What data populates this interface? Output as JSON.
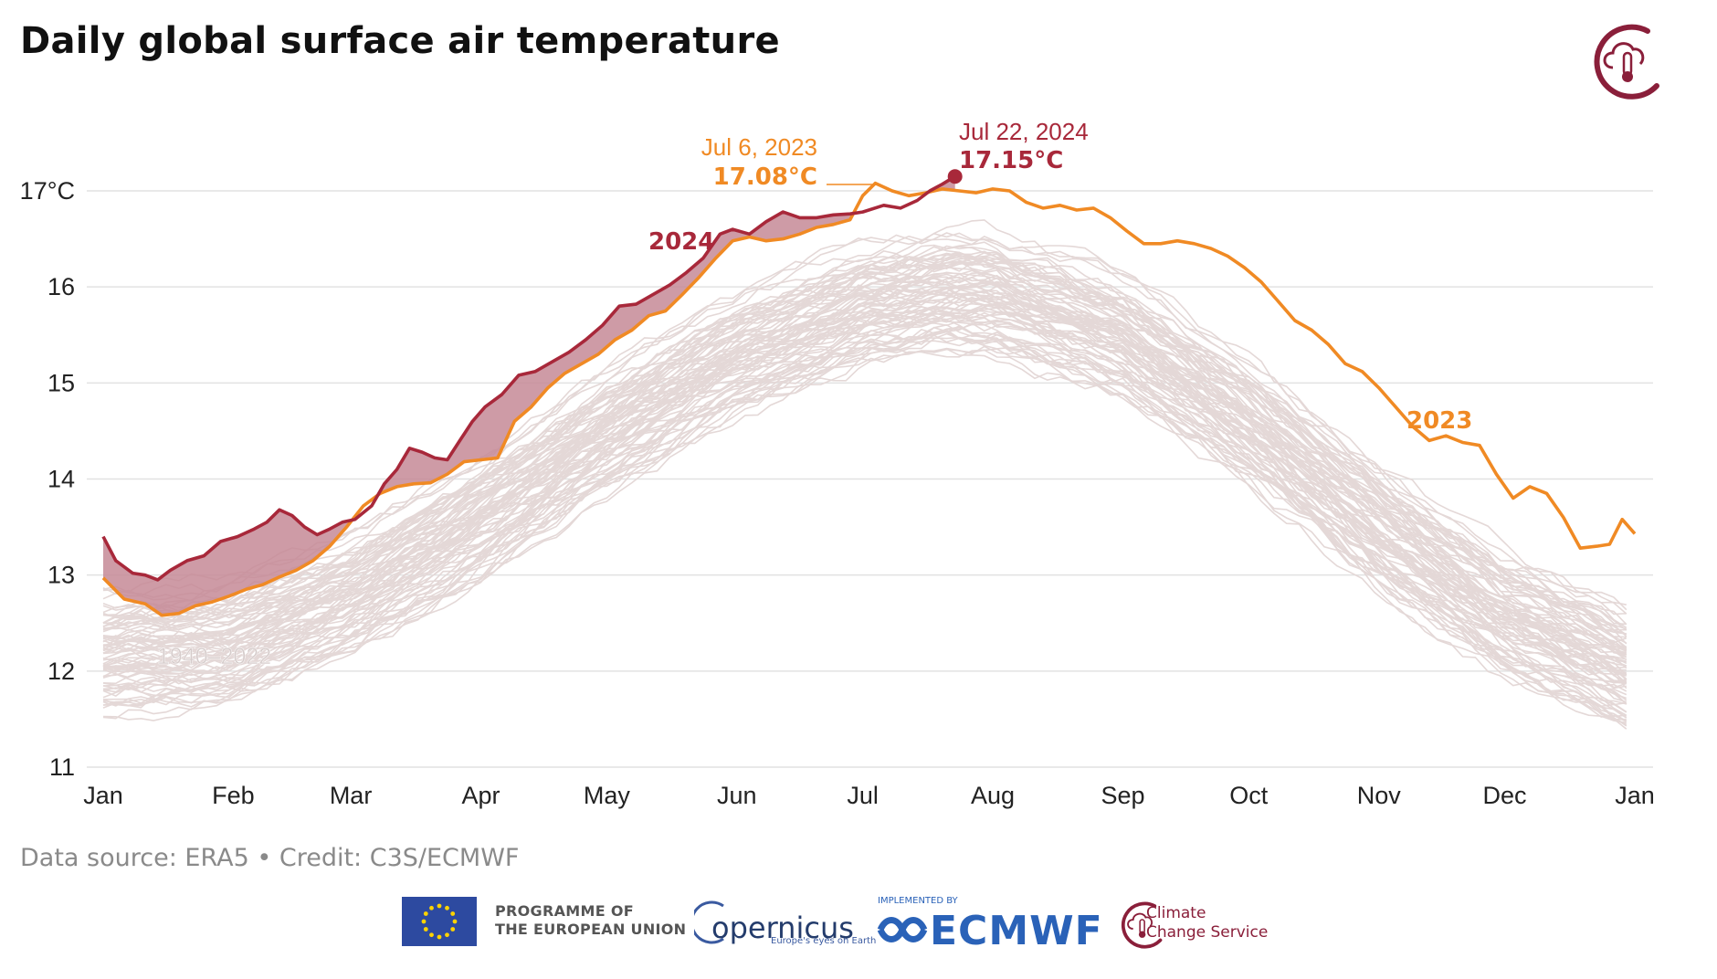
{
  "title": "Daily global surface air temperature",
  "credit": "Data source: ERA5 • Credit: C3S/ECMWF",
  "colors": {
    "y2024": "#a8283a",
    "y2023": "#f08a24",
    "historical": "#e4d8d7",
    "fill": "#c68a96",
    "grid": "#e2e2e2",
    "c3s": "#8a1f3a",
    "eu": "#2d4aa0",
    "ecmwf": "#2a62b8"
  },
  "logos": {
    "eu_line1": "PROGRAMME OF",
    "eu_line2": "THE EUROPEAN UNION",
    "copernicus": "opernicus",
    "copernicus_sub": "Europe's eyes on Earth",
    "ecmwf_small": "IMPLEMENTED BY",
    "ecmwf": "ECMWF",
    "c3s_line1": "Climate",
    "c3s_line2": "Change Service",
    "icons": [
      "c3s-thermometer-cloud-icon",
      "eu-flag-icon",
      "ecmwf-icon"
    ]
  },
  "chart_data": {
    "type": "line",
    "x_axis": {
      "ticks": [
        "Jan",
        "Feb",
        "Mar",
        "Apr",
        "May",
        "Jun",
        "Jul",
        "Aug",
        "Sep",
        "Oct",
        "Nov",
        "Dec",
        "Jan"
      ],
      "tick_days": [
        0,
        31,
        59,
        90,
        120,
        151,
        181,
        212,
        243,
        273,
        304,
        334,
        365
      ],
      "range_days": [
        0,
        365
      ]
    },
    "y_axis": {
      "ticks": [
        "11",
        "12",
        "13",
        "14",
        "15",
        "16",
        "17°C"
      ],
      "tick_values": [
        11,
        12,
        13,
        14,
        15,
        16,
        17
      ],
      "range": [
        11,
        17.6
      ]
    },
    "grid": true,
    "series": [
      {
        "name": "2024",
        "label": "2024",
        "points": [
          [
            0,
            13.4
          ],
          [
            3,
            13.15
          ],
          [
            7,
            13.02
          ],
          [
            10,
            13.0
          ],
          [
            13,
            12.95
          ],
          [
            16,
            13.05
          ],
          [
            20,
            13.15
          ],
          [
            24,
            13.2
          ],
          [
            28,
            13.35
          ],
          [
            32,
            13.4
          ],
          [
            36,
            13.48
          ],
          [
            39,
            13.55
          ],
          [
            42,
            13.68
          ],
          [
            45,
            13.62
          ],
          [
            48,
            13.5
          ],
          [
            51,
            13.42
          ],
          [
            54,
            13.48
          ],
          [
            57,
            13.55
          ],
          [
            60,
            13.58
          ],
          [
            64,
            13.72
          ],
          [
            67,
            13.95
          ],
          [
            70,
            14.1
          ],
          [
            73,
            14.32
          ],
          [
            76,
            14.28
          ],
          [
            79,
            14.22
          ],
          [
            82,
            14.2
          ],
          [
            85,
            14.4
          ],
          [
            88,
            14.6
          ],
          [
            91,
            14.75
          ],
          [
            95,
            14.88
          ],
          [
            99,
            15.08
          ],
          [
            103,
            15.12
          ],
          [
            107,
            15.22
          ],
          [
            111,
            15.32
          ],
          [
            115,
            15.45
          ],
          [
            119,
            15.6
          ],
          [
            123,
            15.8
          ],
          [
            127,
            15.82
          ],
          [
            131,
            15.92
          ],
          [
            135,
            16.02
          ],
          [
            139,
            16.15
          ],
          [
            143,
            16.3
          ],
          [
            147,
            16.55
          ],
          [
            150,
            16.6
          ],
          [
            154,
            16.55
          ],
          [
            158,
            16.68
          ],
          [
            162,
            16.78
          ],
          [
            166,
            16.72
          ],
          [
            170,
            16.72
          ],
          [
            174,
            16.75
          ],
          [
            178,
            16.76
          ],
          [
            181,
            16.78
          ],
          [
            186,
            16.85
          ],
          [
            190,
            16.82
          ],
          [
            194,
            16.9
          ],
          [
            197,
            17.0
          ],
          [
            200,
            17.07
          ],
          [
            203,
            17.15
          ]
        ]
      },
      {
        "name": "2023",
        "label": "2023",
        "points": [
          [
            0,
            12.97
          ],
          [
            5,
            12.75
          ],
          [
            10,
            12.7
          ],
          [
            14,
            12.58
          ],
          [
            18,
            12.6
          ],
          [
            22,
            12.68
          ],
          [
            26,
            12.72
          ],
          [
            30,
            12.78
          ],
          [
            34,
            12.85
          ],
          [
            38,
            12.9
          ],
          [
            42,
            12.98
          ],
          [
            46,
            13.05
          ],
          [
            50,
            13.15
          ],
          [
            54,
            13.3
          ],
          [
            58,
            13.5
          ],
          [
            62,
            13.72
          ],
          [
            66,
            13.85
          ],
          [
            70,
            13.92
          ],
          [
            74,
            13.95
          ],
          [
            78,
            13.96
          ],
          [
            82,
            14.05
          ],
          [
            86,
            14.18
          ],
          [
            90,
            14.2
          ],
          [
            94,
            14.22
          ],
          [
            98,
            14.6
          ],
          [
            102,
            14.75
          ],
          [
            106,
            14.95
          ],
          [
            110,
            15.1
          ],
          [
            114,
            15.2
          ],
          [
            118,
            15.3
          ],
          [
            122,
            15.45
          ],
          [
            126,
            15.55
          ],
          [
            130,
            15.7
          ],
          [
            134,
            15.75
          ],
          [
            138,
            15.92
          ],
          [
            142,
            16.1
          ],
          [
            146,
            16.3
          ],
          [
            150,
            16.48
          ],
          [
            154,
            16.52
          ],
          [
            158,
            16.48
          ],
          [
            162,
            16.5
          ],
          [
            166,
            16.55
          ],
          [
            170,
            16.62
          ],
          [
            174,
            16.65
          ],
          [
            178,
            16.7
          ],
          [
            181,
            16.95
          ],
          [
            184,
            17.08
          ],
          [
            188,
            17.0
          ],
          [
            192,
            16.95
          ],
          [
            196,
            16.98
          ],
          [
            200,
            17.02
          ],
          [
            204,
            17.0
          ],
          [
            208,
            16.98
          ],
          [
            212,
            17.02
          ],
          [
            216,
            17.0
          ],
          [
            220,
            16.88
          ],
          [
            224,
            16.82
          ],
          [
            228,
            16.85
          ],
          [
            232,
            16.8
          ],
          [
            236,
            16.82
          ],
          [
            240,
            16.72
          ],
          [
            244,
            16.58
          ],
          [
            248,
            16.45
          ],
          [
            252,
            16.45
          ],
          [
            256,
            16.48
          ],
          [
            260,
            16.45
          ],
          [
            264,
            16.4
          ],
          [
            268,
            16.32
          ],
          [
            272,
            16.2
          ],
          [
            276,
            16.05
          ],
          [
            280,
            15.85
          ],
          [
            284,
            15.65
          ],
          [
            288,
            15.55
          ],
          [
            292,
            15.4
          ],
          [
            296,
            15.2
          ],
          [
            300,
            15.12
          ],
          [
            304,
            14.95
          ],
          [
            308,
            14.75
          ],
          [
            312,
            14.55
          ],
          [
            316,
            14.4
          ],
          [
            320,
            14.45
          ],
          [
            324,
            14.38
          ],
          [
            328,
            14.35
          ],
          [
            332,
            14.05
          ],
          [
            336,
            13.8
          ],
          [
            340,
            13.92
          ],
          [
            344,
            13.85
          ],
          [
            348,
            13.6
          ],
          [
            352,
            13.28
          ],
          [
            356,
            13.3
          ],
          [
            359,
            13.32
          ],
          [
            362,
            13.58
          ],
          [
            365,
            13.43
          ]
        ]
      }
    ],
    "historical_band": {
      "label": "1940–2022",
      "line_count": 83,
      "mean": [
        [
          0,
          12.2
        ],
        [
          31,
          12.3
        ],
        [
          59,
          12.8
        ],
        [
          90,
          13.6
        ],
        [
          120,
          14.5
        ],
        [
          151,
          15.3
        ],
        [
          181,
          15.8
        ],
        [
          200,
          15.95
        ],
        [
          212,
          15.95
        ],
        [
          243,
          15.5
        ],
        [
          273,
          14.6
        ],
        [
          304,
          13.5
        ],
        [
          334,
          12.6
        ],
        [
          365,
          12.0
        ]
      ],
      "spread": 0.45
    },
    "annotations": [
      {
        "date": "Jul 6, 2023",
        "value": "17.08°C",
        "series": "2023",
        "x": 184,
        "y": 17.08
      },
      {
        "date": "Jul 22, 2024",
        "value": "17.15°C",
        "series": "2024",
        "x": 203,
        "y": 17.15
      }
    ]
  }
}
